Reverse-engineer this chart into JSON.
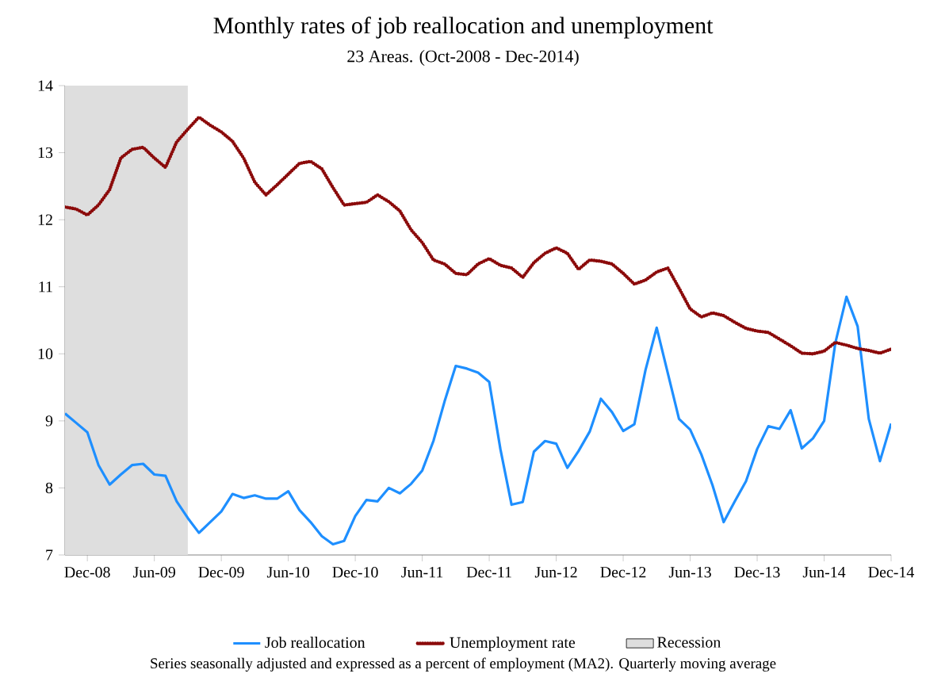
{
  "chart_data": {
    "type": "line",
    "title": "Monthly rates of job reallocation and unemployment",
    "subtitle": "23 Areas. (Oct-2008 - Dec-2014)",
    "x": [
      "2008-10",
      "2008-11",
      "2008-12",
      "2009-01",
      "2009-02",
      "2009-03",
      "2009-04",
      "2009-05",
      "2009-06",
      "2009-07",
      "2009-08",
      "2009-09",
      "2009-10",
      "2009-11",
      "2009-12",
      "2010-01",
      "2010-02",
      "2010-03",
      "2010-04",
      "2010-05",
      "2010-06",
      "2010-07",
      "2010-08",
      "2010-09",
      "2010-10",
      "2010-11",
      "2010-12",
      "2011-01",
      "2011-02",
      "2011-03",
      "2011-04",
      "2011-05",
      "2011-06",
      "2011-07",
      "2011-08",
      "2011-09",
      "2011-10",
      "2011-11",
      "2011-12",
      "2012-01",
      "2012-02",
      "2012-03",
      "2012-04",
      "2012-05",
      "2012-06",
      "2012-07",
      "2012-08",
      "2012-09",
      "2012-10",
      "2012-11",
      "2012-12",
      "2013-01",
      "2013-02",
      "2013-03",
      "2013-04",
      "2013-05",
      "2013-06",
      "2013-07",
      "2013-08",
      "2013-09",
      "2013-10",
      "2013-11",
      "2013-12",
      "2014-01",
      "2014-02",
      "2014-03",
      "2014-04",
      "2014-05",
      "2014-06",
      "2014-07",
      "2014-08",
      "2014-09",
      "2014-10",
      "2014-11",
      "2014-12"
    ],
    "series": [
      {
        "name": "Job reallocation",
        "color": "#1e8fff",
        "line_style": "solid",
        "values": [
          9.11,
          8.97,
          8.83,
          8.34,
          8.05,
          8.2,
          8.34,
          8.36,
          8.2,
          8.18,
          7.8,
          7.55,
          7.33,
          7.49,
          7.65,
          7.91,
          7.85,
          7.89,
          7.84,
          7.84,
          7.95,
          7.67,
          7.49,
          7.28,
          7.16,
          7.21,
          7.58,
          7.82,
          7.8,
          8.0,
          7.92,
          8.06,
          8.26,
          8.7,
          9.29,
          9.82,
          9.78,
          9.72,
          9.58,
          8.58,
          7.75,
          7.79,
          8.54,
          8.7,
          8.66,
          8.3,
          8.55,
          8.84,
          9.33,
          9.13,
          8.85,
          8.95,
          9.76,
          10.39,
          9.71,
          9.03,
          8.87,
          8.5,
          8.04,
          7.49,
          7.8,
          8.1,
          8.58,
          8.92,
          8.88,
          9.16,
          8.59,
          8.74,
          9.0,
          10.16,
          10.85,
          10.41,
          9.03,
          8.4,
          8.96
        ]
      },
      {
        "name": "Unemployment rate",
        "color": "#8b0a0a",
        "line_style": "dotted",
        "values": [
          12.19,
          12.16,
          12.07,
          12.22,
          12.45,
          12.92,
          13.05,
          13.08,
          12.92,
          12.78,
          13.16,
          13.35,
          13.53,
          13.41,
          13.31,
          13.17,
          12.92,
          12.56,
          12.37,
          12.52,
          12.68,
          12.84,
          12.87,
          12.76,
          12.48,
          12.22,
          12.24,
          12.26,
          12.37,
          12.27,
          12.13,
          11.85,
          11.66,
          11.4,
          11.34,
          11.2,
          11.18,
          11.34,
          11.42,
          11.32,
          11.28,
          11.14,
          11.36,
          11.5,
          11.58,
          11.5,
          11.26,
          11.4,
          11.38,
          11.34,
          11.2,
          11.04,
          11.1,
          11.22,
          11.28,
          10.98,
          10.67,
          10.55,
          10.61,
          10.57,
          10.47,
          10.38,
          10.34,
          10.32,
          10.22,
          10.12,
          10.01,
          10.0,
          10.04,
          10.17,
          10.13,
          10.08,
          10.05,
          10.01,
          10.07
        ]
      }
    ],
    "xlim": [
      "2008-10",
      "2014-12"
    ],
    "xticks": [
      {
        "value": "2008-12",
        "label": "Dec-08"
      },
      {
        "value": "2009-06",
        "label": "Jun-09"
      },
      {
        "value": "2009-12",
        "label": "Dec-09"
      },
      {
        "value": "2010-06",
        "label": "Jun-10"
      },
      {
        "value": "2010-12",
        "label": "Dec-10"
      },
      {
        "value": "2011-06",
        "label": "Jun-11"
      },
      {
        "value": "2011-12",
        "label": "Dec-11"
      },
      {
        "value": "2012-06",
        "label": "Jun-12"
      },
      {
        "value": "2012-12",
        "label": "Dec-12"
      },
      {
        "value": "2013-06",
        "label": "Jun-13"
      },
      {
        "value": "2013-12",
        "label": "Dec-13"
      },
      {
        "value": "2014-06",
        "label": "Jun-14"
      },
      {
        "value": "2014-12",
        "label": "Dec-14"
      }
    ],
    "ylim": [
      7,
      14
    ],
    "yticks": [
      7,
      8,
      9,
      10,
      11,
      12,
      13,
      14
    ],
    "bands": [
      {
        "axis": "x",
        "from": "2008-10",
        "to": "2009-09",
        "label": "Recession",
        "color": "#dedede"
      }
    ],
    "legend": "bottom",
    "grid": false,
    "annotations": [
      "Series seasonally adjusted and expressed as a percent of employment (MA2). Quarterly moving average"
    ]
  }
}
